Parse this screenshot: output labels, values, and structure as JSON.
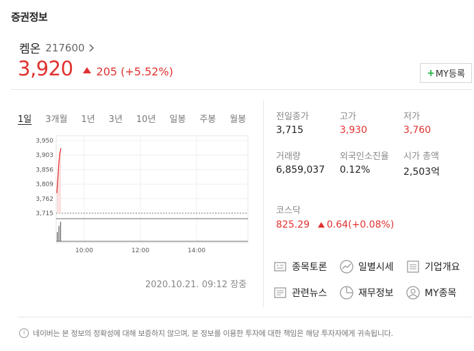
{
  "section": {
    "title": "증권정보"
  },
  "stock": {
    "name": "켐온",
    "code": "217600",
    "price": "3,920",
    "change": "205 (+5.52%)"
  },
  "my_button": {
    "plus": "+",
    "label": "MY등록"
  },
  "periods": [
    "1일",
    "3개월",
    "1년",
    "3년",
    "10년",
    "일봉",
    "주봉",
    "월봉"
  ],
  "active_period": "1일",
  "chart_data": {
    "type": "line",
    "y_ticks": [
      "3,950",
      "3,903",
      "3,856",
      "3,809",
      "3,762",
      "3,715"
    ],
    "x_ticks": [
      "10:00",
      "12:00",
      "14:00"
    ],
    "ylim": [
      3715,
      3950
    ],
    "series": [
      {
        "values": [
          3780,
          3830,
          3880,
          3910,
          3925
        ]
      }
    ],
    "baseline": 3715,
    "volume": [
      0.45,
      0.75,
      0.95
    ]
  },
  "timestamp": "2020.10.21. 09:12 장중",
  "stats": [
    {
      "label": "전일종가",
      "value": "3,715",
      "tone": "plain"
    },
    {
      "label": "고가",
      "value": "3,930",
      "tone": "up"
    },
    {
      "label": "저가",
      "value": "3,760",
      "tone": "up"
    },
    {
      "label": "거래량",
      "value": "6,859,037",
      "tone": "plain"
    },
    {
      "label": "외국인소진율",
      "value": "0.12%",
      "tone": "plain"
    },
    {
      "label": "시가 총액",
      "value": "2,503억",
      "tone": "plain"
    }
  ],
  "index": {
    "label": "코스닥",
    "value": "825.29",
    "change": "0.64(+0.08%)"
  },
  "links": [
    {
      "label": "종목토론",
      "icon": "discussion-icon"
    },
    {
      "label": "일별시세",
      "icon": "trend-icon"
    },
    {
      "label": "기업개요",
      "icon": "company-icon"
    },
    {
      "label": "관련뉴스",
      "icon": "news-icon"
    },
    {
      "label": "재무정보",
      "icon": "pie-icon"
    },
    {
      "label": "MY종목",
      "icon": "user-icon"
    }
  ],
  "footer": "네이버는 본 정보의 정확성에 대해 보증하지 않으며, 본 정보를 이용한 투자에 대한 책임은 해당 투자자에게 귀속됩니다.",
  "colors": {
    "up": "#e0312f",
    "plus": "#19b33a",
    "text": "#222222",
    "muted": "#888888"
  }
}
